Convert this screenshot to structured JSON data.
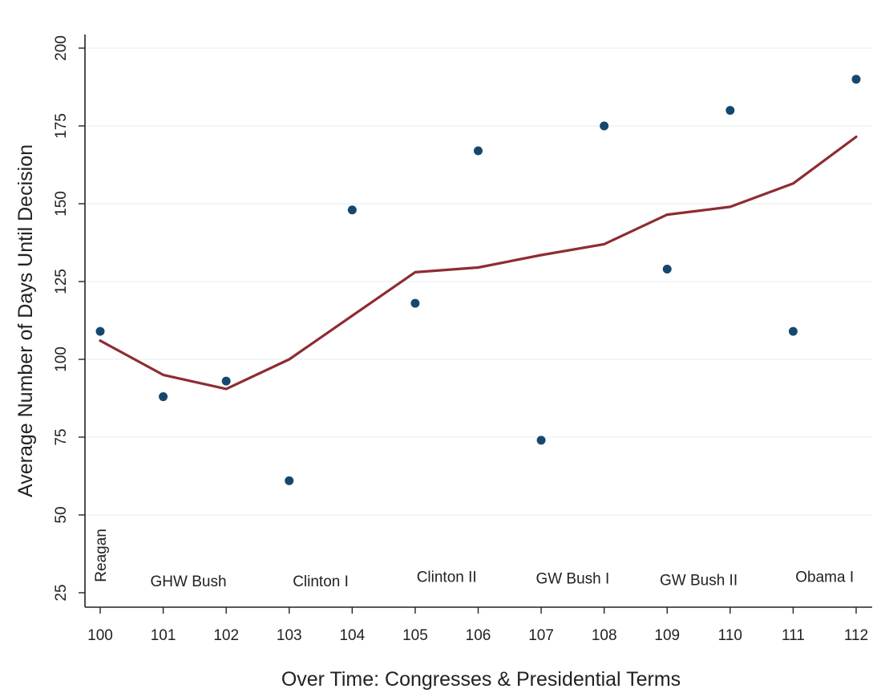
{
  "chart_data": {
    "type": "scatter",
    "xlabel": "Over Time:  Congresses & Presidential Terms",
    "ylabel": "Average Number of Days Until Decision",
    "xlim": [
      100,
      112
    ],
    "ylim": [
      25,
      200
    ],
    "x_ticks": [
      "100",
      "101",
      "102",
      "103",
      "104",
      "105",
      "106",
      "107",
      "108",
      "109",
      "110",
      "111",
      "112"
    ],
    "y_ticks": [
      "25",
      "50",
      "75",
      "100",
      "125",
      "150",
      "175",
      "200"
    ],
    "grid": "horizontal",
    "legend": "none",
    "colors": {
      "points": "#16486e",
      "fit_line": "#8e2c33"
    },
    "series": [
      {
        "kind": "scatter",
        "x": [
          100,
          101,
          102,
          103,
          104,
          105,
          106,
          107,
          108,
          109,
          110,
          111,
          112
        ],
        "y": [
          109,
          88,
          93,
          61,
          148,
          118,
          167,
          74,
          175,
          129,
          180,
          109,
          190
        ]
      },
      {
        "kind": "line",
        "x": [
          100,
          101,
          102,
          103,
          104,
          105,
          106,
          107,
          108,
          109,
          110,
          111,
          112
        ],
        "y": [
          106,
          95,
          90.5,
          100,
          114,
          128,
          129.5,
          133.5,
          137,
          146.5,
          149,
          156.5,
          171.5
        ]
      }
    ],
    "annotations": [
      {
        "text": "Reagan",
        "x": 100,
        "y": 37,
        "orientation": "vertical"
      },
      {
        "text": "GHW Bush",
        "x": 101.4,
        "y": 27
      },
      {
        "text": "Clinton I",
        "x": 103.5,
        "y": 27
      },
      {
        "text": "Clinton II",
        "x": 105.5,
        "y": 28.5
      },
      {
        "text": "GW Bush I",
        "x": 107.5,
        "y": 28
      },
      {
        "text": "GW Bush II",
        "x": 109.5,
        "y": 27.5
      },
      {
        "text": "Obama I",
        "x": 111.5,
        "y": 28.5
      }
    ]
  }
}
